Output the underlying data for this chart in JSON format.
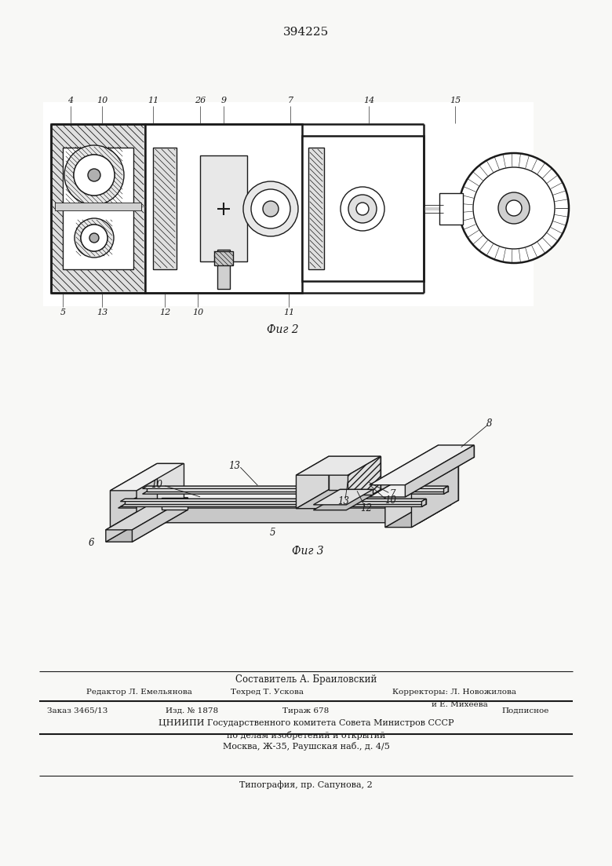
{
  "doc_number": "394225",
  "bg_color": "#f8f8f6",
  "line_color": "#1a1a1a",
  "fig2_caption": "Фиг 2",
  "fig3_caption": "Фиг 3",
  "footer": {
    "line1": "Составитель А. Браиловский",
    "line2_left": "Редактор Л. Емельянова",
    "line2_mid": "Техред Т. Ускова",
    "line2_right": "Корректоры: Л. Новожилова",
    "line3_right": "и Е. Михеева",
    "line4_l": "Заказ 3465/13",
    "line4_m1": "Изд. № 1878",
    "line4_m2": "Тираж 678",
    "line4_r": "Подписное",
    "line5": "ЦНИИПИ Государственного комитета Совета Министров СССР",
    "line6": "по делам изобретений и открытий",
    "line7": "Москва, Ж-35, Раушская наб., д. 4/5",
    "line8": "Типография, пр. Сапунова, 2"
  }
}
